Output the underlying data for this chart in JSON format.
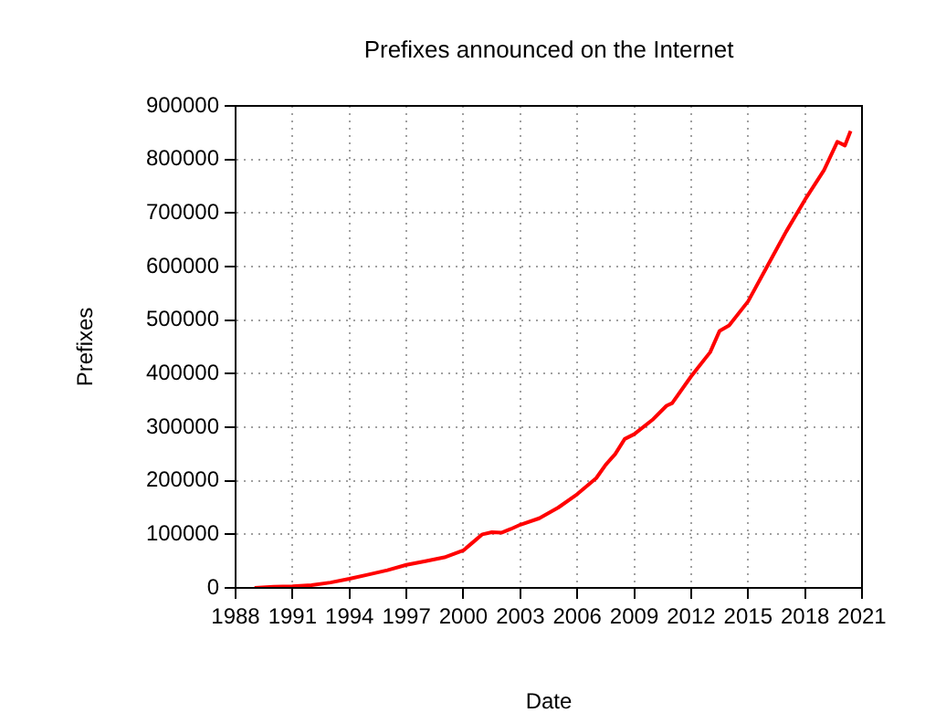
{
  "chart_data": {
    "type": "line",
    "title": "Prefixes announced on the Internet",
    "xlabel": "Date",
    "ylabel": "Prefixes",
    "x": [
      1989,
      1990,
      1991,
      1992,
      1993,
      1994,
      1995,
      1996,
      1997,
      1998,
      1999,
      2000,
      2000.5,
      2001,
      2001.5,
      2002,
      2002.5,
      2003,
      2004,
      2005,
      2006,
      2007,
      2007.5,
      2008,
      2008.5,
      2009,
      2010,
      2010.7,
      2011,
      2012,
      2013,
      2013.5,
      2014,
      2015,
      2016,
      2017,
      2018,
      2019,
      2019.7,
      2020.1,
      2020.4
    ],
    "series": [
      {
        "color": "#ff0000",
        "values": [
          0,
          2000,
          3000,
          5000,
          10000,
          17000,
          25000,
          33000,
          43000,
          50000,
          57000,
          70000,
          85000,
          100000,
          104000,
          103000,
          110000,
          118000,
          130000,
          150000,
          175000,
          205000,
          230000,
          250000,
          278000,
          287000,
          315000,
          340000,
          345000,
          395000,
          440000,
          480000,
          490000,
          535000,
          600000,
          665000,
          725000,
          780000,
          833000,
          826000,
          853000
        ]
      }
    ],
    "xlim": [
      1988,
      2021
    ],
    "xticks": [
      1988,
      1991,
      1994,
      1997,
      2000,
      2003,
      2006,
      2009,
      2012,
      2015,
      2018,
      2021
    ],
    "ylim": [
      0,
      900000
    ],
    "yticks": [
      0,
      100000,
      200000,
      300000,
      400000,
      500000,
      600000,
      700000,
      800000,
      900000
    ],
    "grid": true,
    "legend": false,
    "marker": "none",
    "line_style": "solid"
  }
}
